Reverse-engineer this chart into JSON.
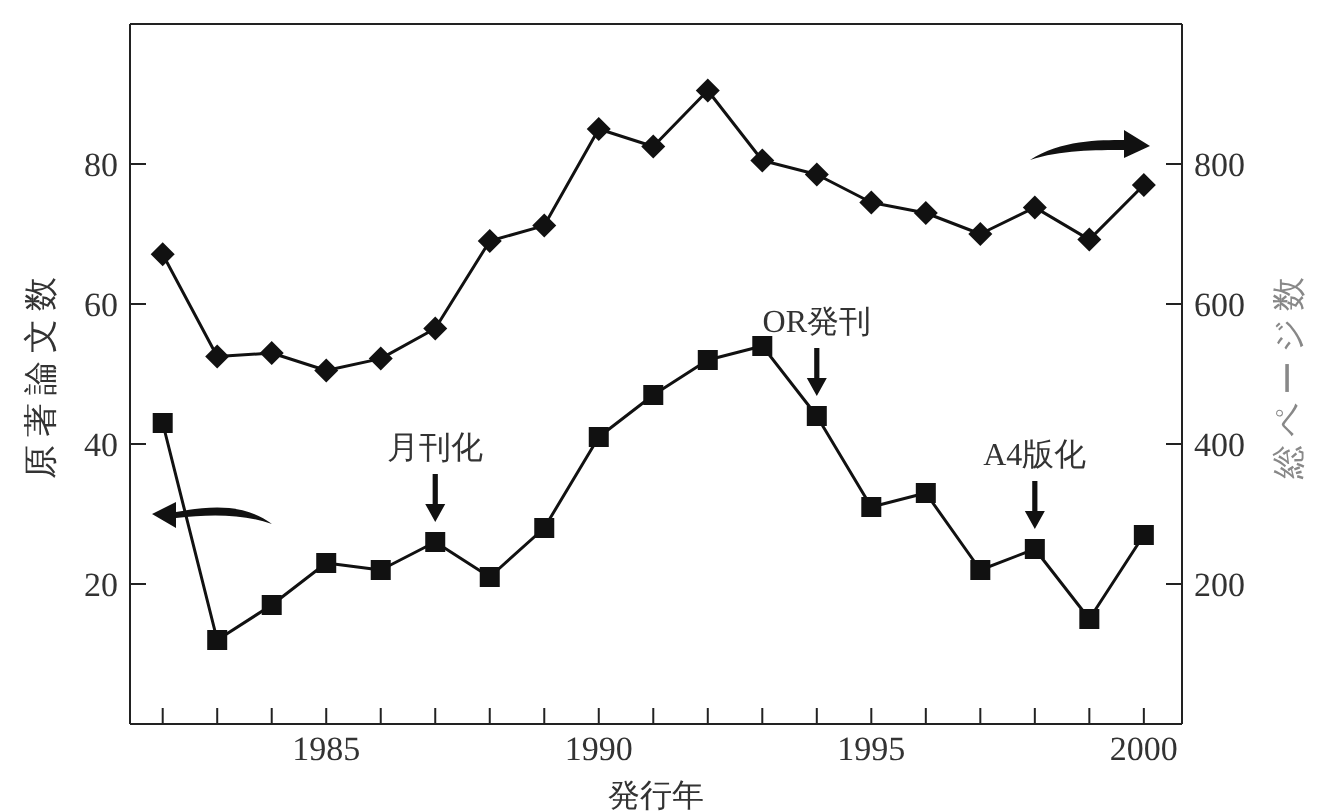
{
  "chart_data": {
    "type": "line",
    "xlabel": "発行年",
    "ylabel": "原著論文数",
    "y2label": "総ページ数",
    "x": [
      1982,
      1983,
      1984,
      1985,
      1986,
      1987,
      1988,
      1989,
      1990,
      1991,
      1992,
      1993,
      1994,
      1995,
      1996,
      1997,
      1998,
      1999,
      2000
    ],
    "series": [
      {
        "color": "#111111",
        "marker": "square",
        "values": [
          43,
          12,
          17,
          23,
          22,
          26,
          21,
          28,
          41,
          47,
          52,
          54,
          44,
          31,
          33,
          22,
          25,
          15,
          27
        ]
      },
      {
        "color": "#111111",
        "marker": "diamond",
        "axis": "y2",
        "values": [
          671,
          525,
          530,
          505,
          522,
          565,
          690,
          712,
          850,
          825,
          905,
          805,
          785,
          745,
          730,
          700,
          738,
          692,
          770
        ]
      }
    ],
    "xlim": [
      1981.4,
      2000.7
    ],
    "xticks": [
      {
        "value": 1982,
        "label": null
      },
      {
        "value": 1983,
        "label": null
      },
      {
        "value": 1984,
        "label": null
      },
      1985,
      {
        "value": 1986,
        "label": null
      },
      {
        "value": 1987,
        "label": null
      },
      {
        "value": 1988,
        "label": null
      },
      {
        "value": 1989,
        "label": null
      },
      1990,
      {
        "value": 1991,
        "label": null
      },
      {
        "value": 1992,
        "label": null
      },
      {
        "value": 1993,
        "label": null
      },
      {
        "value": 1994,
        "label": null
      },
      1995,
      {
        "value": 1996,
        "label": null
      },
      {
        "value": 1997,
        "label": null
      },
      {
        "value": 1998,
        "label": null
      },
      {
        "value": 1999,
        "label": null
      },
      2000
    ],
    "ylim": [
      0,
      100
    ],
    "yticks": [
      20,
      40,
      60,
      80
    ],
    "y2lim": [
      0,
      1000
    ],
    "y2ticks": [
      200,
      400,
      600,
      800
    ],
    "line_style": "solid",
    "annotations": [
      {
        "text": "月刊化",
        "x": 1987,
        "y": 26
      },
      {
        "text": "OR発刊",
        "x": 1994,
        "y": 44
      },
      {
        "text": "A4版化",
        "x": 1998,
        "y": 25
      }
    ]
  }
}
